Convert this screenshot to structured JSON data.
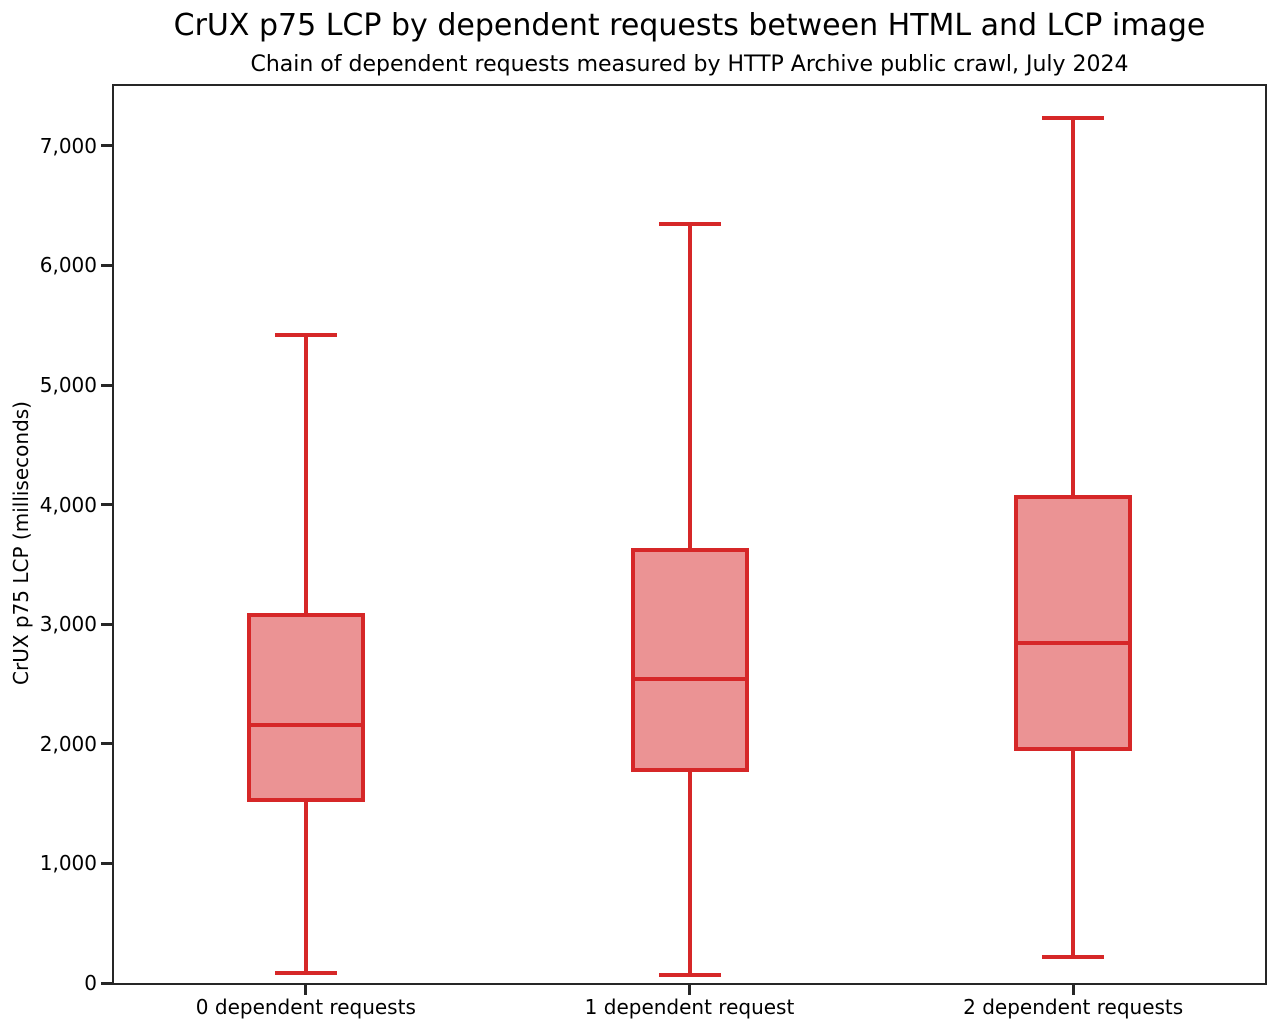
{
  "chart_data": {
    "type": "boxplot",
    "title": "CrUX p75 LCP by dependent requests between HTML and LCP image",
    "subtitle": "Chain of dependent requests measured by HTTP Archive public crawl, July 2024",
    "ylabel": "CrUX p75 LCP (milliseconds)",
    "xlabel": "",
    "ylim": [
      0,
      7500
    ],
    "grid": false,
    "legend": false,
    "yticks": [
      {
        "value": 0,
        "label": "0"
      },
      {
        "value": 1000,
        "label": "1,000"
      },
      {
        "value": 2000,
        "label": "2,000"
      },
      {
        "value": 3000,
        "label": "3,000"
      },
      {
        "value": 4000,
        "label": "4,000"
      },
      {
        "value": 5000,
        "label": "5,000"
      },
      {
        "value": 6000,
        "label": "6,000"
      },
      {
        "value": 7000,
        "label": "7,000"
      }
    ],
    "categories": [
      "0 dependent requests",
      "1 dependent request",
      "2 dependent requests"
    ],
    "series": [
      {
        "category": "0 dependent requests",
        "whisker_low": 80,
        "q1": 1530,
        "median": 2160,
        "q3": 3080,
        "whisker_high": 5420
      },
      {
        "category": "1 dependent request",
        "whisker_low": 70,
        "q1": 1780,
        "median": 2540,
        "q3": 3620,
        "whisker_high": 6350
      },
      {
        "category": "2 dependent requests",
        "whisker_low": 220,
        "q1": 1960,
        "median": 2840,
        "q3": 4060,
        "whisker_high": 7230
      }
    ],
    "colors": {
      "box_line": "#d62728",
      "box_fill": "#eb9394",
      "axis": "#262626",
      "text": "#000000"
    }
  }
}
